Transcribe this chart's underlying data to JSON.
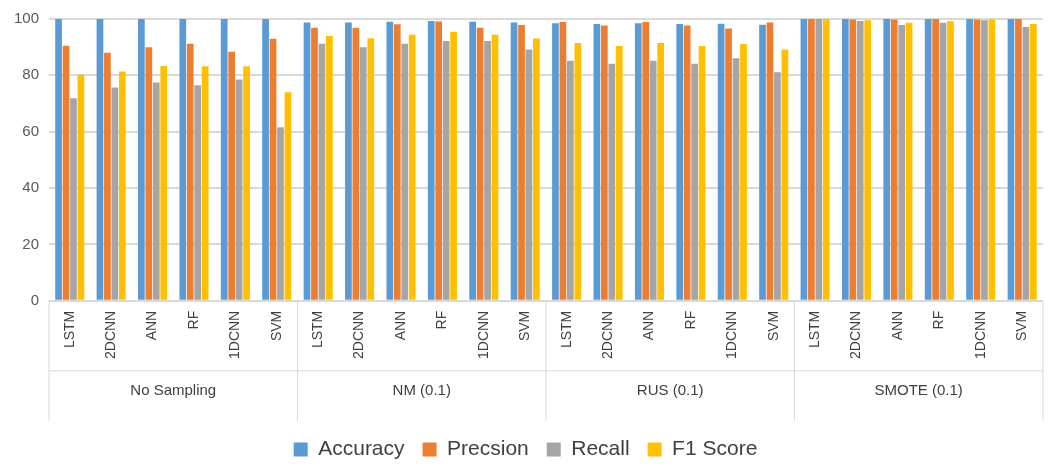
{
  "chart_data": {
    "type": "bar",
    "categories": [
      "LSTM",
      "2DCNN",
      "ANN",
      "RF",
      "1DCNN",
      "SVM",
      "LSTM",
      "2DCNN",
      "ANN",
      "RF",
      "1DCNN",
      "SVM",
      "LSTM",
      "2DCNN",
      "ANN",
      "RF",
      "1DCNN",
      "SVM",
      "LSTM",
      "2DCNN",
      "ANN",
      "RF",
      "1DCNN",
      "SVM"
    ],
    "series": [
      {
        "name": "Accuracy",
        "color": "#5b9bd5",
        "values": [
          100,
          100,
          100,
          100,
          100,
          100,
          98.8,
          98.8,
          99.0,
          99.3,
          99.0,
          98.8,
          98.5,
          98.2,
          98.5,
          98.2,
          98.3,
          98.0,
          100,
          100,
          100,
          100,
          100,
          100
        ]
      },
      {
        "name": "Precsion",
        "color": "#ed7d31",
        "values": [
          90.5,
          88.0,
          90.0,
          91.2,
          88.4,
          93.0,
          96.9,
          96.9,
          98.1,
          99.1,
          96.9,
          97.9,
          98.9,
          97.7,
          98.9,
          97.7,
          96.6,
          98.8,
          100,
          99.8,
          99.8,
          100,
          99.8,
          100
        ]
      },
      {
        "name": "Recall",
        "color": "#a5a5a5",
        "values": [
          71.9,
          75.7,
          77.5,
          76.5,
          78.5,
          61.6,
          91.2,
          90.0,
          91.2,
          92.2,
          92.2,
          89.2,
          85.2,
          84.1,
          85.2,
          84.1,
          86.1,
          81.1,
          100,
          99.3,
          97.9,
          98.7,
          99.6,
          97.2
        ]
      },
      {
        "name": "F1 Score",
        "color": "#ffc000",
        "values": [
          80.2,
          81.4,
          83.3,
          83.2,
          83.2,
          74.0,
          94.0,
          93.2,
          94.4,
          95.5,
          94.4,
          93.1,
          91.5,
          90.4,
          91.5,
          90.4,
          91.1,
          89.1,
          100,
          99.6,
          98.7,
          99.2,
          99.8,
          98.2
        ]
      }
    ],
    "annotations": [
      "No Sampling",
      "NM (0.1)",
      "RUS (0.1)",
      "SMOTE (0.1)"
    ],
    "ylim": [
      0,
      100
    ],
    "yticks": [
      0,
      20,
      40,
      60,
      80,
      100
    ],
    "grid": "y",
    "legend": "bottom"
  }
}
